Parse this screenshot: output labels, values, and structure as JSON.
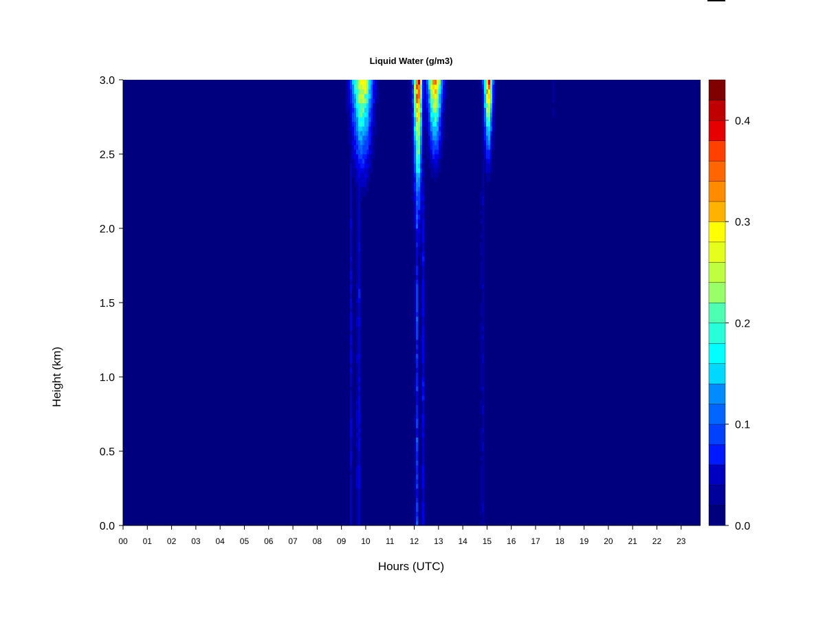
{
  "chart_data": {
    "type": "heatmap",
    "title": "Liquid Water (g/m3)",
    "xlabel": "Hours (UTC)",
    "ylabel": "Height (km)",
    "x_tick_labels": [
      "00",
      "01",
      "02",
      "03",
      "04",
      "05",
      "06",
      "07",
      "08",
      "09",
      "10",
      "11",
      "12",
      "13",
      "14",
      "15",
      "16",
      "17",
      "18",
      "19",
      "20",
      "21",
      "22",
      "23"
    ],
    "xlim": [
      0,
      23.8
    ],
    "ylim": [
      0.0,
      3.0
    ],
    "y_ticks": [
      "0.0",
      "0.5",
      "1.0",
      "1.5",
      "2.0",
      "2.5",
      "3.0"
    ],
    "colorbar": {
      "range": [
        0.0,
        0.44
      ],
      "levels": 22,
      "tick_values": [
        0.0,
        0.1,
        0.2,
        0.3,
        0.4
      ],
      "tick_labels": [
        "0.0",
        "0.1",
        "0.2",
        "0.3",
        "0.4"
      ],
      "colors": [
        "#00007f",
        "#00009a",
        "#0000c0",
        "#0000e6",
        "#0019ff",
        "#0040ff",
        "#0066ff",
        "#008cff",
        "#00b3ff",
        "#00d9ff",
        "#00ffff",
        "#26ffd9",
        "#4cffb3",
        "#73ff8c",
        "#99ff66",
        "#c0ff40",
        "#e6ff1a",
        "#ffff00",
        "#ffd900",
        "#ffb300",
        "#ff8c00",
        "#ff6600",
        "#ff4000",
        "#ff1a00",
        "#e60000",
        "#bf0000",
        "#800000"
      ]
    },
    "cloud_events": [
      {
        "center_hour": 9.85,
        "width_hours": 0.95,
        "peak_value": 0.32,
        "base_km": 2.05
      },
      {
        "center_hour": 12.15,
        "width_hours": 0.4,
        "peak_value": 0.42,
        "base_km": 1.6
      },
      {
        "center_hour": 12.85,
        "width_hours": 0.65,
        "peak_value": 0.36,
        "base_km": 2.2
      },
      {
        "center_hour": 15.05,
        "width_hours": 0.4,
        "peak_value": 0.4,
        "base_km": 2.2
      },
      {
        "center_hour": 17.75,
        "width_hours": 0.12,
        "peak_value": 0.04,
        "base_km": 2.3
      }
    ],
    "precip_columns": [
      {
        "center_hour": 9.4,
        "value": 0.05
      },
      {
        "center_hour": 9.7,
        "value": 0.07
      },
      {
        "center_hour": 12.1,
        "value": 0.09
      },
      {
        "center_hour": 12.35,
        "value": 0.06
      },
      {
        "center_hour": 14.8,
        "value": 0.04
      }
    ]
  }
}
